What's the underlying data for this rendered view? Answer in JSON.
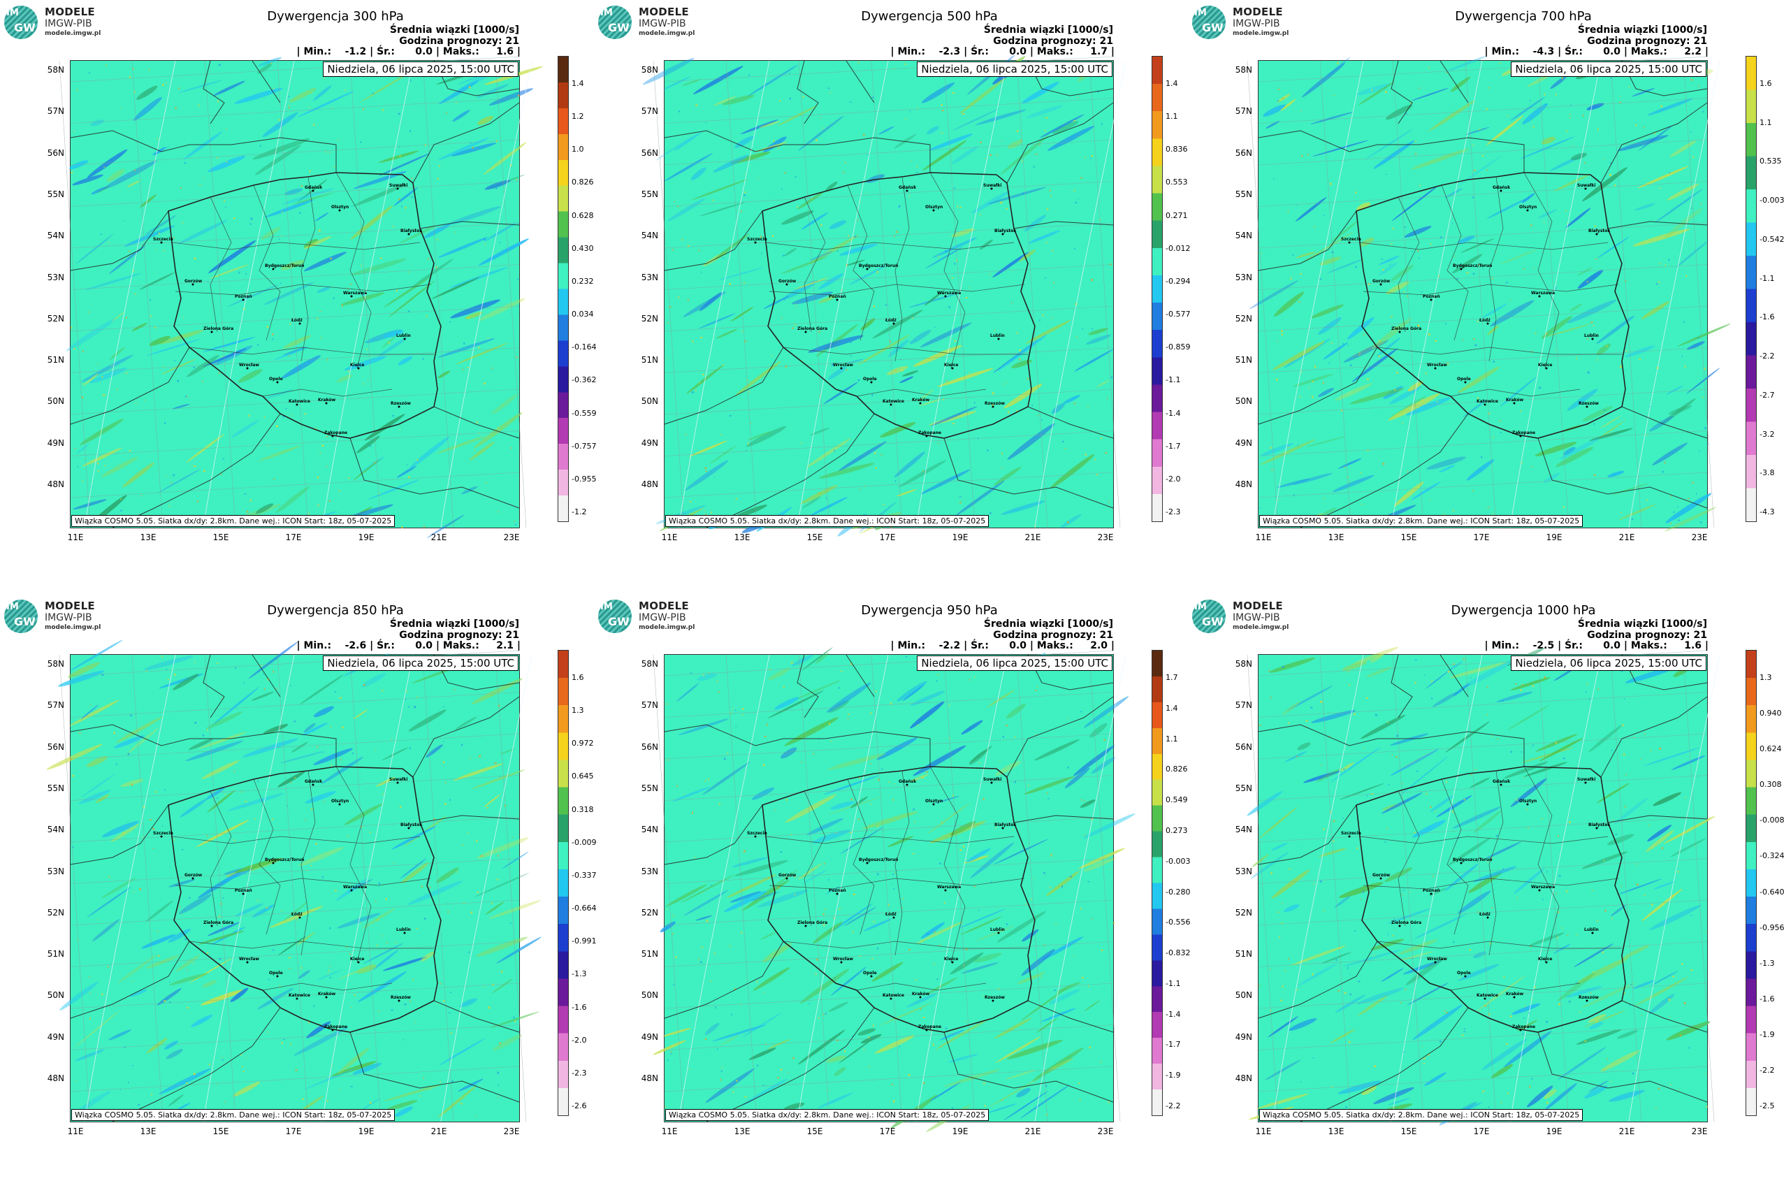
{
  "logo": {
    "title": "MODELE",
    "org": "IMGW-PIB",
    "url": "modele.imgw.pl",
    "im": "IM",
    "gw": "GW"
  },
  "common": {
    "subtitle1": "Średnia wiązki [1000/s]",
    "subtitle2": "Godzina prognozy: 21",
    "date": "Niedziela, 06 lipca 2025, 15:00 UTC",
    "footer": "Wiązka COSMO 5.05. Siatka dx/dy: 2.8km. Dane wej.: ICON Start: 18z, 05-07-2025",
    "lat_labels": [
      "58N",
      "57N",
      "56N",
      "55N",
      "54N",
      "53N",
      "52N",
      "51N",
      "50N",
      "49N",
      "48N"
    ],
    "lon_labels": [
      "11E",
      "13E",
      "15E",
      "17E",
      "19E",
      "21E",
      "23E"
    ],
    "cities": [
      "Gdańsk",
      "Olsztyn",
      "Suwałki",
      "Białystok",
      "Szczecin",
      "Bydgoszcz/Toruń",
      "Gorzów",
      "Poznań",
      "Warszawa",
      "Zielona Góra",
      "Łódź",
      "Lublin",
      "Wrocław",
      "Kielce",
      "Opole",
      "Katowice",
      "Kraków",
      "Rzeszów",
      "Zakopane"
    ]
  },
  "panels": [
    {
      "title": "Dywergencja 300 hPa",
      "min": "-1.2",
      "avg": "0.0",
      "max": "1.6",
      "colorbar": {
        "palette": "full",
        "ticks": [
          "1.4",
          "1.2",
          "1.0",
          "0.826",
          "0.628",
          "0.430",
          "0.232",
          "0.034",
          "-0.164",
          "-0.362",
          "-0.559",
          "-0.757",
          "-0.955",
          "-1.2"
        ]
      }
    },
    {
      "title": "Dywergencja 500 hPa",
      "min": "-2.3",
      "avg": "0.0",
      "max": "1.7",
      "colorbar": {
        "palette": "noBrown",
        "ticks": [
          "1.4",
          "1.1",
          "0.836",
          "0.553",
          "0.271",
          "-0.012",
          "-0.294",
          "-0.577",
          "-0.859",
          "-1.1",
          "-1.4",
          "-1.7",
          "-2.0",
          "-2.3"
        ]
      }
    },
    {
      "title": "Dywergencja 700 hPa",
      "min": "-4.3",
      "avg": "0.0",
      "max": "2.2",
      "colorbar": {
        "palette": "yellowTop",
        "ticks": [
          "1.6",
          "1.1",
          "0.535",
          "-0.003",
          "-0.542",
          "-1.1",
          "-1.6",
          "-2.2",
          "-2.7",
          "-3.2",
          "-3.8",
          "-4.3"
        ]
      }
    },
    {
      "title": "Dywergencja 850 hPa",
      "min": "-2.6",
      "avg": "0.0",
      "max": "2.1",
      "colorbar": {
        "palette": "noBrown",
        "ticks": [
          "1.6",
          "1.3",
          "0.972",
          "0.645",
          "0.318",
          "-0.009",
          "-0.337",
          "-0.664",
          "-0.991",
          "-1.3",
          "-1.6",
          "-2.0",
          "-2.3",
          "-2.6"
        ]
      }
    },
    {
      "title": "Dywergencja 950 hPa",
      "min": "-2.2",
      "avg": "0.0",
      "max": "2.0",
      "colorbar": {
        "palette": "full",
        "ticks": [
          "1.7",
          "1.4",
          "1.1",
          "0.826",
          "0.549",
          "0.273",
          "-0.003",
          "-0.280",
          "-0.556",
          "-0.832",
          "-1.1",
          "-1.4",
          "-1.7",
          "-1.9",
          "-2.2"
        ]
      }
    },
    {
      "title": "Dywergencja 1000 hPa",
      "min": "-2.5",
      "avg": "0.0",
      "max": "1.6",
      "colorbar": {
        "palette": "noBrown",
        "ticks": [
          "1.3",
          "0.940",
          "0.624",
          "0.308",
          "-0.008",
          "-0.324",
          "-0.640",
          "-0.956",
          "-1.3",
          "-1.6",
          "-1.9",
          "-2.2",
          "-2.5"
        ]
      }
    }
  ],
  "colors": {
    "map_bg": "#3ff0c0",
    "border": "#222222",
    "isoline": "#e8f6ff"
  }
}
